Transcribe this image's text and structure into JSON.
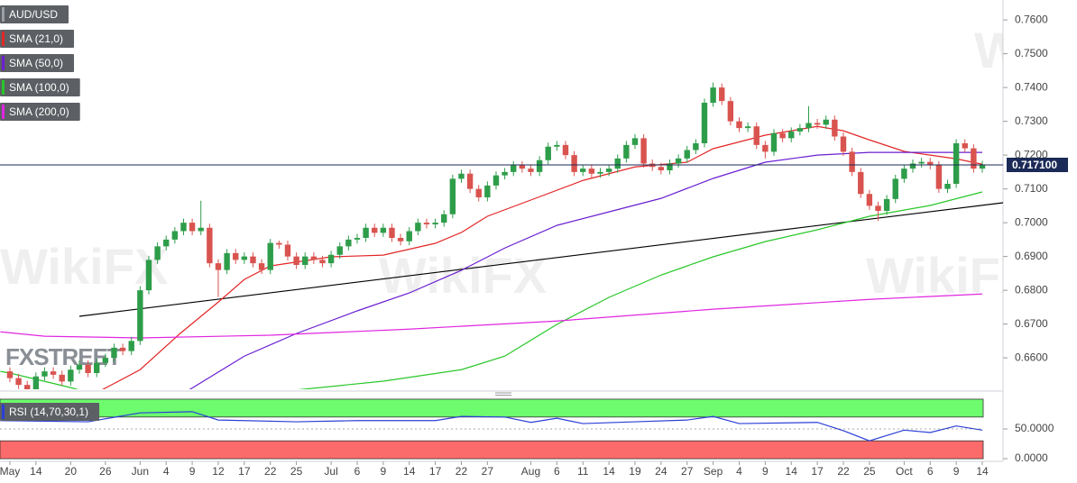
{
  "chart_data": [
    {
      "type": "candlestick",
      "watermarks": [
        "WikiFX",
        "FXSTREET"
      ],
      "series": [
        {
          "name": "AUD/USD",
          "type": "candlestick",
          "up_color": "#2e9d4a",
          "down_color": "#d9534f",
          "color": "#9aa0a6",
          "open": [
            0.656,
            0.654,
            0.652,
            0.6505,
            0.6545,
            0.656,
            0.655,
            0.653,
            0.6565,
            0.658,
            0.6555,
            0.6585,
            0.66,
            0.663,
            0.662,
            0.665,
            0.68,
            0.689,
            0.693,
            0.695,
            0.6975,
            0.7,
            0.6975,
            0.6985,
            0.688,
            0.686,
            0.691,
            0.689,
            0.69,
            0.688,
            0.686,
            0.694,
            0.6935,
            0.69,
            0.6875,
            0.69,
            0.689,
            0.688,
            0.6905,
            0.693,
            0.695,
            0.6955,
            0.6985,
            0.697,
            0.6985,
            0.6955,
            0.6945,
            0.6975,
            0.7,
            0.6995,
            0.7,
            0.7025,
            0.713,
            0.7145,
            0.71,
            0.7075,
            0.711,
            0.714,
            0.715,
            0.717,
            0.716,
            0.715,
            0.7185,
            0.7225,
            0.723,
            0.72,
            0.715,
            0.716,
            0.7145,
            0.715,
            0.716,
            0.719,
            0.723,
            0.725,
            0.7175,
            0.7165,
            0.7155,
            0.7175,
            0.719,
            0.7215,
            0.7235,
            0.7355,
            0.74,
            0.736,
            0.73,
            0.728,
            0.7285,
            0.723,
            0.721,
            0.7265,
            0.725,
            0.727,
            0.728,
            0.7295,
            0.729,
            0.7305,
            0.7255,
            0.721,
            0.715,
            0.7085,
            0.705,
            0.7035,
            0.707,
            0.713,
            0.716,
            0.7175,
            0.718,
            0.717,
            0.71,
            0.7115,
            0.7235,
            0.722,
            0.716
          ],
          "high": [
            0.6572,
            0.6552,
            0.6532,
            0.6557,
            0.6572,
            0.6572,
            0.6562,
            0.6577,
            0.6592,
            0.6592,
            0.6597,
            0.6612,
            0.6642,
            0.6642,
            0.6662,
            0.6812,
            0.6902,
            0.6942,
            0.6962,
            0.6987,
            0.7012,
            0.7012,
            0.7065,
            0.6997,
            0.6892,
            0.6922,
            0.6922,
            0.6912,
            0.6912,
            0.6892,
            0.6952,
            0.6947,
            0.6947,
            0.6912,
            0.6912,
            0.6912,
            0.6902,
            0.6917,
            0.6942,
            0.6962,
            0.6967,
            0.6997,
            0.6997,
            0.6997,
            0.6997,
            0.6967,
            0.6987,
            0.7012,
            0.7012,
            0.7012,
            0.7037,
            0.7142,
            0.7157,
            0.7157,
            0.7112,
            0.7122,
            0.7152,
            0.7162,
            0.7182,
            0.7182,
            0.7172,
            0.7197,
            0.7237,
            0.7242,
            0.7242,
            0.7212,
            0.7172,
            0.7172,
            0.7162,
            0.7172,
            0.7202,
            0.7242,
            0.7262,
            0.7262,
            0.7187,
            0.7177,
            0.7187,
            0.7202,
            0.7227,
            0.7247,
            0.7367,
            0.7415,
            0.7412,
            0.7372,
            0.7312,
            0.7297,
            0.7297,
            0.7242,
            0.7277,
            0.7277,
            0.7282,
            0.7292,
            0.7345,
            0.7307,
            0.7317,
            0.7317,
            0.7267,
            0.7222,
            0.7162,
            0.7097,
            0.7062,
            0.7082,
            0.7142,
            0.7172,
            0.7187,
            0.7192,
            0.7192,
            0.7182,
            0.7127,
            0.7247,
            0.7247,
            0.7232,
            0.7183
          ],
          "low": [
            0.6528,
            0.6508,
            0.6493,
            0.6493,
            0.6533,
            0.6538,
            0.6518,
            0.6518,
            0.6553,
            0.6543,
            0.6543,
            0.6573,
            0.6588,
            0.6608,
            0.6608,
            0.6638,
            0.6788,
            0.6878,
            0.6918,
            0.6938,
            0.6963,
            0.6963,
            0.6963,
            0.6868,
            0.678,
            0.6848,
            0.6878,
            0.6878,
            0.6868,
            0.6848,
            0.6848,
            0.6923,
            0.6888,
            0.6863,
            0.6863,
            0.6878,
            0.6868,
            0.6868,
            0.6893,
            0.6918,
            0.6938,
            0.6943,
            0.6958,
            0.6958,
            0.6943,
            0.6933,
            0.6933,
            0.6963,
            0.6983,
            0.6983,
            0.6988,
            0.7013,
            0.7118,
            0.7088,
            0.7063,
            0.7063,
            0.7098,
            0.7128,
            0.7138,
            0.7148,
            0.7138,
            0.7138,
            0.7173,
            0.7213,
            0.7188,
            0.7138,
            0.7138,
            0.7133,
            0.7133,
            0.7138,
            0.7148,
            0.7178,
            0.7218,
            0.7163,
            0.7153,
            0.7143,
            0.7143,
            0.7163,
            0.7178,
            0.7203,
            0.7223,
            0.7343,
            0.7348,
            0.7288,
            0.7268,
            0.7268,
            0.7218,
            0.719,
            0.7198,
            0.7238,
            0.7238,
            0.7258,
            0.7268,
            0.7278,
            0.7278,
            0.7243,
            0.7198,
            0.7138,
            0.7073,
            0.7038,
            0.7005,
            0.7023,
            0.7058,
            0.7118,
            0.7148,
            0.7163,
            0.7158,
            0.7088,
            0.7088,
            0.7103,
            0.7208,
            0.7148,
            0.7148
          ],
          "close": [
            0.654,
            0.652,
            0.6505,
            0.6545,
            0.656,
            0.655,
            0.653,
            0.6565,
            0.658,
            0.6555,
            0.6585,
            0.66,
            0.663,
            0.662,
            0.665,
            0.68,
            0.689,
            0.693,
            0.695,
            0.6975,
            0.7,
            0.6975,
            0.6985,
            0.688,
            0.686,
            0.691,
            0.689,
            0.69,
            0.688,
            0.686,
            0.694,
            0.6935,
            0.69,
            0.6875,
            0.69,
            0.689,
            0.688,
            0.6905,
            0.693,
            0.695,
            0.6955,
            0.6985,
            0.697,
            0.6985,
            0.6955,
            0.6945,
            0.6975,
            0.7,
            0.6995,
            0.7,
            0.7025,
            0.713,
            0.7145,
            0.71,
            0.7075,
            0.711,
            0.714,
            0.715,
            0.717,
            0.716,
            0.715,
            0.7185,
            0.7225,
            0.723,
            0.72,
            0.715,
            0.716,
            0.7145,
            0.715,
            0.716,
            0.719,
            0.723,
            0.725,
            0.7175,
            0.7165,
            0.7155,
            0.7175,
            0.719,
            0.7215,
            0.7235,
            0.7355,
            0.74,
            0.736,
            0.73,
            0.728,
            0.7285,
            0.723,
            0.721,
            0.7265,
            0.725,
            0.727,
            0.728,
            0.7295,
            0.729,
            0.7305,
            0.7255,
            0.721,
            0.715,
            0.7085,
            0.705,
            0.7035,
            0.707,
            0.713,
            0.716,
            0.7175,
            0.718,
            0.717,
            0.71,
            0.7115,
            0.7235,
            0.722,
            0.716,
            0.7171
          ]
        },
        {
          "name": "SMA (21,0)",
          "type": "line",
          "color": "#e32626",
          "x": [
            10,
            15,
            19.6,
            24,
            27,
            30,
            37,
            43,
            49,
            52,
            55,
            60,
            66,
            72,
            78,
            81,
            87,
            93,
            96,
            99,
            103,
            106,
            109,
            112
          ],
          "values": [
            0.6497,
            0.6565,
            0.6672,
            0.6765,
            0.6832,
            0.6872,
            0.6899,
            0.6904,
            0.6939,
            0.6971,
            0.7019,
            0.7067,
            0.7125,
            0.7165,
            0.7179,
            0.7219,
            0.7259,
            0.7285,
            0.7272,
            0.7245,
            0.7211,
            0.72,
            0.7189,
            0.7173
          ]
        },
        {
          "name": "SMA (50,0)",
          "type": "line",
          "color": "#6a1fd1",
          "x": [
            20,
            27,
            33,
            40,
            46,
            52,
            57,
            63,
            69,
            75,
            81,
            87,
            93,
            99,
            106,
            112
          ],
          "values": [
            0.6495,
            0.6605,
            0.6672,
            0.6739,
            0.6792,
            0.6859,
            0.6925,
            0.6992,
            0.7032,
            0.7072,
            0.7131,
            0.7179,
            0.72,
            0.7208,
            0.7208,
            0.7208
          ]
        },
        {
          "name": "SMA (100,0)",
          "type": "line",
          "color": "#28c728",
          "x": [
            -1.1,
            0,
            7,
            10,
            20,
            33,
            43,
            52,
            57,
            63,
            69,
            75,
            81,
            87,
            93,
            99,
            106,
            112
          ],
          "values": [
            0.656,
            0.6555,
            0.6512,
            0.649,
            0.647,
            0.6505,
            0.6531,
            0.6565,
            0.6605,
            0.6699,
            0.6779,
            0.6845,
            0.6899,
            0.6944,
            0.6979,
            0.7019,
            0.7051,
            0.7091
          ]
        },
        {
          "name": "SMA (200,0)",
          "type": "line",
          "color": "#e026e0",
          "x": [
            -1.1,
            4,
            15,
            30,
            46,
            63,
            81,
            99,
            112
          ],
          "values": [
            0.6677,
            0.6664,
            0.6659,
            0.6667,
            0.6685,
            0.6709,
            0.6744,
            0.6773,
            0.6789
          ]
        }
      ],
      "trendline": {
        "color": "#000000",
        "x": [
          8,
          114.39
        ],
        "values": [
          0.6723,
          0.7059
        ]
      },
      "last_price": {
        "value": 0.7171,
        "label": "0.717100",
        "color": "#1b2a56"
      },
      "xlim": [
        -1.14,
        114.39
      ],
      "xticks": [
        {
          "value": 0,
          "label": "May"
        },
        {
          "value": 3,
          "label": "14"
        },
        {
          "value": 7,
          "label": "20"
        },
        {
          "value": 11,
          "label": "26"
        },
        {
          "value": 15,
          "label": "Jun"
        },
        {
          "value": 18,
          "label": "4"
        },
        {
          "value": 21,
          "label": "9"
        },
        {
          "value": 24,
          "label": "12"
        },
        {
          "value": 27,
          "label": "17"
        },
        {
          "value": 30,
          "label": "22"
        },
        {
          "value": 33,
          "label": "25"
        },
        {
          "value": 37,
          "label": "Jul"
        },
        {
          "value": 40,
          "label": "6"
        },
        {
          "value": 43,
          "label": "9"
        },
        {
          "value": 46,
          "label": "14"
        },
        {
          "value": 49,
          "label": "17"
        },
        {
          "value": 52,
          "label": "22"
        },
        {
          "value": 55,
          "label": "27"
        },
        {
          "value": 60,
          "label": "Aug"
        },
        {
          "value": 63,
          "label": "6"
        },
        {
          "value": 66,
          "label": "11"
        },
        {
          "value": 69,
          "label": "14"
        },
        {
          "value": 72,
          "label": "19"
        },
        {
          "value": 75,
          "label": "24"
        },
        {
          "value": 78,
          "label": "27"
        },
        {
          "value": 81,
          "label": "Sep"
        },
        {
          "value": 84,
          "label": "4"
        },
        {
          "value": 87,
          "label": "9"
        },
        {
          "value": 90,
          "label": "14"
        },
        {
          "value": 93,
          "label": "17"
        },
        {
          "value": 96,
          "label": "22"
        },
        {
          "value": 99,
          "label": "25"
        },
        {
          "value": 103,
          "label": "Oct"
        },
        {
          "value": 106,
          "label": "6"
        },
        {
          "value": 109,
          "label": "9"
        },
        {
          "value": 112,
          "label": "14"
        }
      ],
      "ylim": [
        0.6507,
        0.7659
      ],
      "yticks": [
        {
          "value": 0.66,
          "label": "0.6600"
        },
        {
          "value": 0.67,
          "label": "0.6700"
        },
        {
          "value": 0.68,
          "label": "0.6800"
        },
        {
          "value": 0.69,
          "label": "0.6900"
        },
        {
          "value": 0.7,
          "label": "0.7000"
        },
        {
          "value": 0.71,
          "label": "0.7100"
        },
        {
          "value": 0.72,
          "label": "0.7200"
        },
        {
          "value": 0.73,
          "label": "0.7300"
        },
        {
          "value": 0.74,
          "label": "0.7400"
        },
        {
          "value": 0.75,
          "label": "0.7500"
        },
        {
          "value": 0.76,
          "label": "0.7600"
        }
      ]
    },
    {
      "type": "line",
      "series": [
        {
          "name": "RSI (14,70,30,1)",
          "type": "line",
          "color": "#2b3fd6",
          "x": [
            -1.1,
            9,
            15,
            21,
            24,
            33,
            40,
            49,
            52,
            57,
            60,
            63,
            66,
            72,
            78,
            81,
            84,
            93,
            96,
            99,
            103,
            106,
            109,
            112
          ],
          "values": [
            64,
            62,
            77,
            79,
            65,
            62,
            64,
            64,
            71,
            70,
            61,
            68,
            59,
            62,
            65,
            71,
            59,
            61,
            47,
            30,
            48,
            44,
            55,
            48
          ]
        }
      ],
      "zones": [
        {
          "from": 70,
          "to": 100,
          "color": "#6dfc6d"
        },
        {
          "from": 0,
          "to": 30,
          "color": "#fc6b6b"
        }
      ],
      "xlim": [
        -1.14,
        114.39
      ],
      "ylim": [
        -4.5,
        103
      ],
      "yticks": [
        {
          "value": 50,
          "label": "50.0000"
        },
        {
          "value": 0,
          "label": "0.0000"
        }
      ]
    }
  ]
}
